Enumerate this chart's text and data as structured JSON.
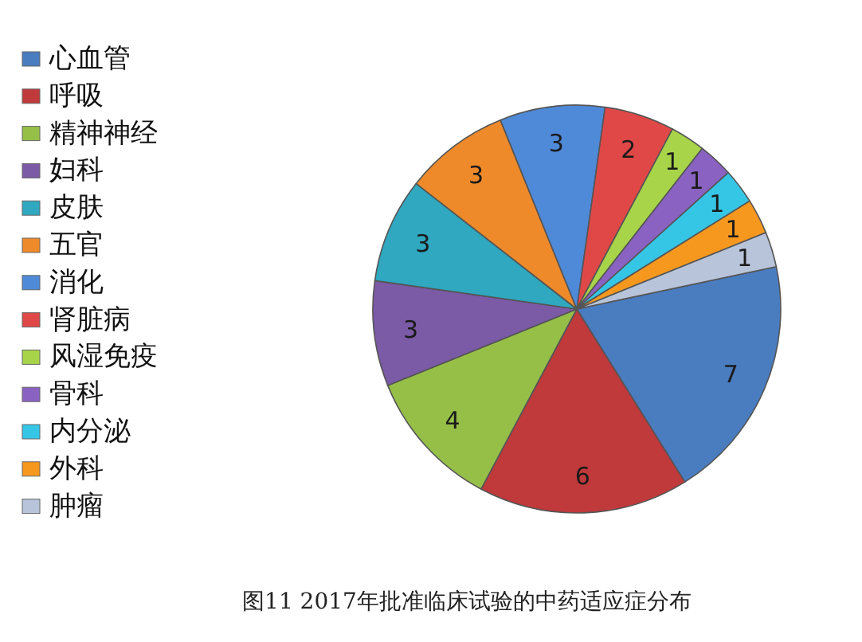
{
  "chart_data": {
    "type": "pie",
    "title": "图11 2017年批准临床试验的中药适应症分布",
    "categories": [
      "心血管",
      "呼吸",
      "精神神经",
      "妇科",
      "皮肤",
      "五官",
      "消化",
      "肾脏病",
      "风湿免疫",
      "骨科",
      "内分泌",
      "外科",
      "肿瘤"
    ],
    "values": [
      7,
      6,
      4,
      3,
      3,
      3,
      3,
      2,
      1,
      1,
      1,
      1,
      1
    ],
    "colors": [
      "#4a7cc0",
      "#c0393b",
      "#96bf48",
      "#7b5aa6",
      "#2fa8c0",
      "#ee8a2a",
      "#4f8ad8",
      "#e04848",
      "#a8d44a",
      "#8a62c2",
      "#35c6e6",
      "#f7981e",
      "#b8c4da"
    ],
    "data_labels": true,
    "legend": "left"
  }
}
